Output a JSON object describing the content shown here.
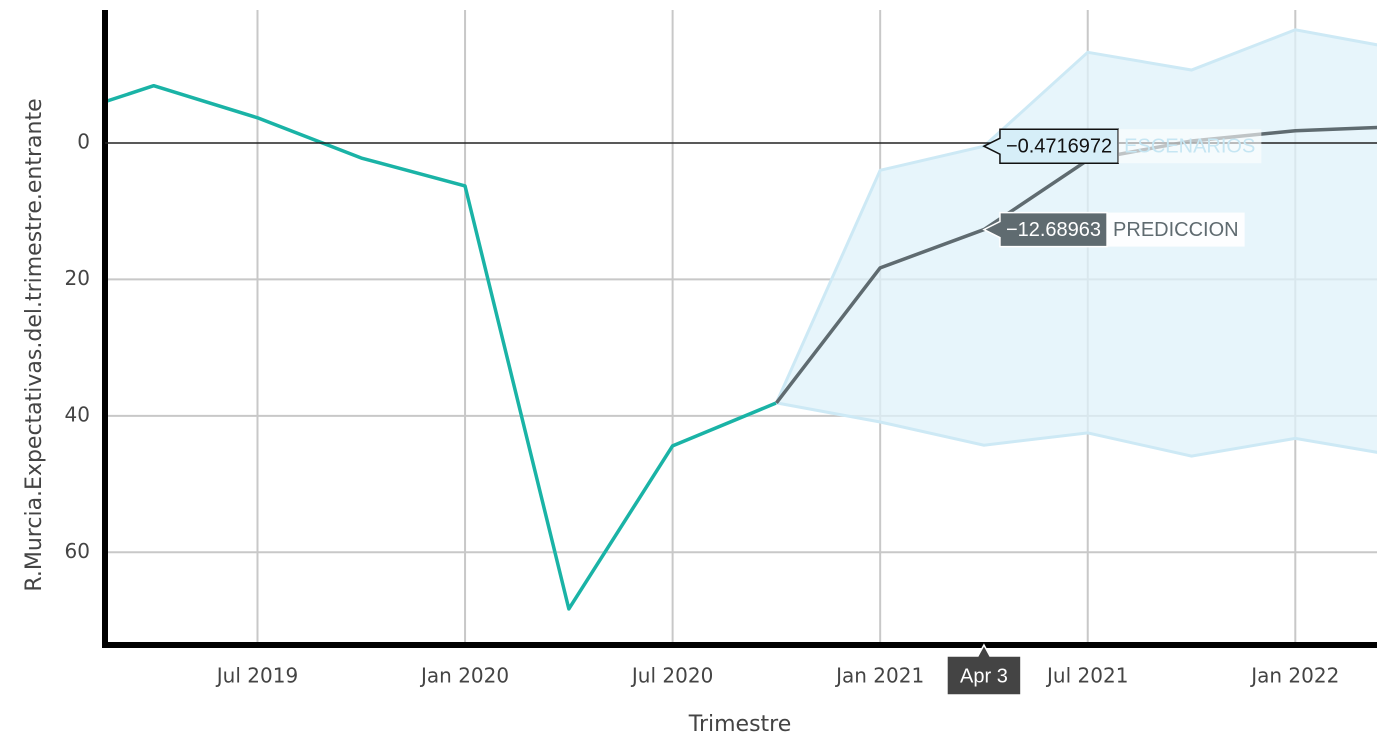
{
  "chart_data": {
    "type": "line",
    "x_label": "Trimestre",
    "y_label": "R.Murcia.Expectativas.del.trimestre.entrante",
    "x": [
      "2019-01",
      "2019-04",
      "2019-07",
      "2019-10",
      "2020-01",
      "2020-04",
      "2020-07",
      "2020-10",
      "2021-01",
      "2021-04",
      "2021-07",
      "2021-10",
      "2022-01",
      "2022-04"
    ],
    "series": [
      {
        "color": "#1ab3a6",
        "values": [
          3.4,
          8.4,
          3.7,
          -2.2,
          -6.3,
          -68.3,
          -44.4,
          -38.1,
          null,
          null,
          null,
          null,
          null,
          null
        ]
      },
      {
        "name": "ESCENARIOS",
        "color": "#cde9f5",
        "fill": "#dff1f9",
        "values": [
          null,
          null,
          null,
          null,
          null,
          null,
          null,
          -38.1,
          -4.0,
          -0.4716972,
          13.3,
          10.7,
          16.6,
          13.8
        ],
        "lower": [
          null,
          null,
          null,
          null,
          null,
          null,
          null,
          -38.1,
          -40.9,
          -44.3,
          -42.5,
          -45.9,
          -43.3,
          -45.9
        ],
        "value_labels": [
          null,
          null,
          null,
          null,
          null,
          null,
          null,
          null,
          null,
          "−0.4716972",
          null,
          null,
          null,
          null
        ]
      },
      {
        "name": "PREDICCION",
        "color": "#5f6b70",
        "values": [
          null,
          null,
          null,
          null,
          null,
          null,
          null,
          -38.1,
          -18.3,
          -12.68963,
          -2.5,
          0.3,
          1.8,
          2.4
        ],
        "value_labels": [
          null,
          null,
          null,
          null,
          null,
          null,
          null,
          null,
          null,
          "−12.68963",
          null,
          null,
          null,
          null
        ]
      }
    ],
    "hover_x_label": "Apr 3",
    "xlim": [
      "2019-02-19",
      "2022-03-12"
    ],
    "xticks": [
      {
        "value": "2019-07",
        "label": "Jul 2019"
      },
      {
        "value": "2020-01",
        "label": "Jan 2020"
      },
      {
        "value": "2020-07",
        "label": "Jul 2020"
      },
      {
        "value": "2021-01",
        "label": "Jan 2021"
      },
      {
        "value": "2021-07",
        "label": "Jul 2021"
      },
      {
        "value": "2022-01",
        "label": "Jan 2022"
      }
    ],
    "ylim": [
      -73.3,
      19.5
    ],
    "yticks": [
      {
        "value": 0,
        "label": "0"
      },
      {
        "value": -20,
        "label": "20"
      },
      {
        "value": -40,
        "label": "40"
      },
      {
        "value": -60,
        "label": "60"
      }
    ],
    "grid": true,
    "zeroline": true
  }
}
